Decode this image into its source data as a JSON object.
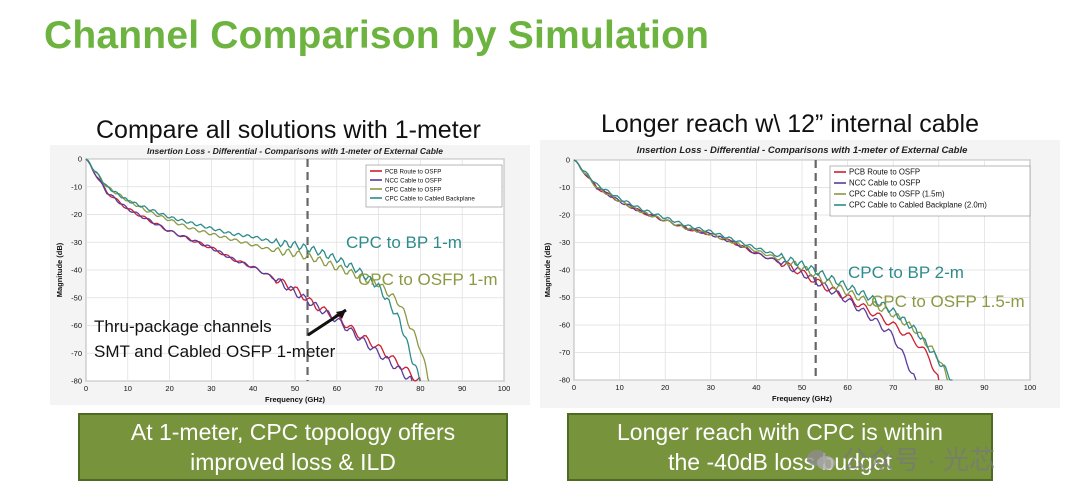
{
  "slide": {
    "title": "Channel Comparison by Simulation",
    "left_heading": "Compare all solutions with 1-meter",
    "right_heading": "Longer reach w\\ 12” internal cable",
    "left_banner": [
      "At 1-meter, CPC topology offers",
      "improved loss & ILD"
    ],
    "right_banner": [
      "Longer reach with CPC is within",
      "the -40dB loss budget"
    ],
    "watermark": "公众号 · 光芯"
  },
  "colors": {
    "pcb": "#cc1f2f",
    "ncc": "#5b3b9a",
    "cpc": "#8a9a43",
    "backplane": "#2e8b8b",
    "title_green": "#6db33f",
    "banner": "#77933c"
  },
  "chart_data": [
    {
      "type": "line",
      "title": "Insertion Loss - Differential - Comparisons with 1-meter of External Cable",
      "xlabel": "Frequency (GHz)",
      "ylabel": "Magnitude (dB)",
      "xlim": [
        0,
        100
      ],
      "ylim": [
        -80,
        0
      ],
      "xticks": [
        0,
        10,
        20,
        30,
        40,
        50,
        60,
        70,
        80,
        90,
        100
      ],
      "yticks": [
        0,
        -10,
        -20,
        -30,
        -40,
        -50,
        -60,
        -70,
        -80
      ],
      "grid": true,
      "legend_position": "top-right",
      "marker_line_x": 53,
      "series": [
        {
          "name": "PCB Route to OSFP",
          "color_key": "pcb",
          "x": [
            0,
            5,
            10,
            15,
            20,
            25,
            30,
            35,
            40,
            45,
            50,
            55,
            60,
            65,
            70,
            75,
            78,
            80
          ],
          "y": [
            0,
            -12,
            -18,
            -22,
            -26,
            -29,
            -32,
            -36,
            -39,
            -43,
            -47,
            -53,
            -57,
            -63,
            -68,
            -74,
            -78,
            -80
          ]
        },
        {
          "name": "NCC Cable to OSFP",
          "color_key": "ncc",
          "x": [
            0,
            5,
            10,
            15,
            20,
            25,
            30,
            35,
            40,
            45,
            50,
            55,
            60,
            65,
            70,
            75,
            78
          ],
          "y": [
            0,
            -12,
            -18,
            -22,
            -26,
            -29,
            -32,
            -36,
            -39,
            -43,
            -48,
            -53,
            -58,
            -64,
            -70,
            -76,
            -80
          ]
        },
        {
          "name": "CPC Cable to OSFP",
          "color_key": "cpc",
          "x": [
            0,
            5,
            10,
            15,
            20,
            25,
            30,
            35,
            40,
            45,
            50,
            55,
            60,
            65,
            70,
            75,
            80,
            82
          ],
          "y": [
            0,
            -10,
            -15,
            -19,
            -22,
            -25,
            -27,
            -29,
            -31,
            -33,
            -34,
            -36,
            -39,
            -42,
            -45,
            -52,
            -68,
            -80
          ]
        },
        {
          "name": "CPC Cable to Cabled Backplane",
          "color_key": "backplane",
          "x": [
            0,
            5,
            10,
            15,
            20,
            25,
            30,
            35,
            40,
            45,
            50,
            55,
            60,
            65,
            70,
            75,
            78,
            80
          ],
          "y": [
            0,
            -10,
            -15,
            -18,
            -21,
            -23,
            -25,
            -27,
            -28,
            -30,
            -31,
            -33,
            -36,
            -40,
            -46,
            -58,
            -72,
            -80
          ]
        }
      ],
      "annotations": [
        {
          "text": "CPC to BP 1-m",
          "color_key": "backplane"
        },
        {
          "text": "CPC to OSFP 1-m",
          "color_key": "cpc"
        },
        {
          "text": "Thru-package channels",
          "color_key": "black"
        },
        {
          "text": "SMT and Cabled OSFP 1-meter",
          "color_key": "black"
        }
      ]
    },
    {
      "type": "line",
      "title": "Insertion Loss - Differential - Comparisons with 1-meter of External Cable",
      "xlabel": "Frequency (GHz)",
      "ylabel": "Magnitude (dB)",
      "xlim": [
        0,
        100
      ],
      "ylim": [
        -80,
        0
      ],
      "xticks": [
        0,
        10,
        20,
        30,
        40,
        50,
        60,
        70,
        80,
        90,
        100
      ],
      "yticks": [
        0,
        -10,
        -20,
        -30,
        -40,
        -50,
        -60,
        -70,
        -80
      ],
      "grid": true,
      "legend_position": "top-right",
      "marker_line_x": 53,
      "series": [
        {
          "name": "PCB Route to OSFP",
          "color_key": "pcb",
          "x": [
            0,
            5,
            10,
            15,
            20,
            25,
            30,
            35,
            40,
            45,
            50,
            55,
            60,
            65,
            70,
            75,
            78,
            80
          ],
          "y": [
            0,
            -10,
            -15,
            -19,
            -22,
            -25,
            -27,
            -30,
            -34,
            -37,
            -41,
            -46,
            -50,
            -55,
            -60,
            -66,
            -72,
            -80
          ]
        },
        {
          "name": "NCC Cable to OSFP",
          "color_key": "ncc",
          "x": [
            0,
            5,
            10,
            15,
            20,
            25,
            30,
            35,
            40,
            45,
            50,
            55,
            60,
            65,
            70,
            75
          ],
          "y": [
            0,
            -10,
            -15,
            -19,
            -22,
            -25,
            -27,
            -30,
            -34,
            -37,
            -41,
            -46,
            -51,
            -57,
            -64,
            -80
          ]
        },
        {
          "name": "CPC Cable to OSFP (1.5m)",
          "color_key": "cpc",
          "x": [
            0,
            5,
            10,
            15,
            20,
            25,
            30,
            35,
            40,
            45,
            50,
            55,
            60,
            65,
            70,
            75,
            80,
            82
          ],
          "y": [
            0,
            -10,
            -15,
            -19,
            -22,
            -25,
            -27,
            -30,
            -33,
            -36,
            -39,
            -44,
            -48,
            -52,
            -56,
            -62,
            -72,
            -80
          ]
        },
        {
          "name": "CPC Cable to Cabled Backplane (2.0m)",
          "color_key": "backplane",
          "x": [
            0,
            5,
            10,
            15,
            20,
            25,
            30,
            35,
            40,
            45,
            50,
            55,
            60,
            65,
            70,
            75,
            80,
            83
          ],
          "y": [
            0,
            -9,
            -14,
            -18,
            -21,
            -24,
            -26,
            -29,
            -32,
            -35,
            -38,
            -42,
            -46,
            -50,
            -55,
            -62,
            -73,
            -80
          ]
        }
      ],
      "annotations": [
        {
          "text": "CPC to BP 2-m",
          "color_key": "backplane"
        },
        {
          "text": "CPC to OSFP 1.5-m",
          "color_key": "cpc"
        }
      ]
    }
  ]
}
